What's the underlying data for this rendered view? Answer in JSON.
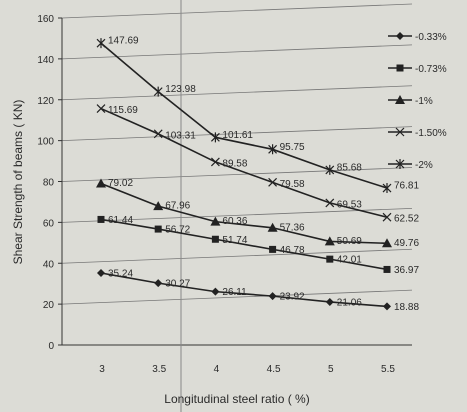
{
  "chart_data": {
    "type": "line",
    "x": [
      3,
      3.5,
      4,
      4.5,
      5,
      5.5
    ],
    "x_tick_labels": [
      "3",
      "3.5",
      "4",
      "4.5",
      "5",
      "5.5"
    ],
    "xlabel": "Longitudinal steel ratio  ( %)",
    "ylabel": "Shear Strength of beams  ( KN)",
    "ylim": [
      0,
      160
    ],
    "y_ticks": [
      "0",
      "20",
      "40",
      "60",
      "80",
      "100",
      "120",
      "140",
      "160"
    ],
    "grid": "horizontal",
    "legend_position": "right",
    "series": [
      {
        "name": "0.33%",
        "marker": "diamond",
        "color": "#222222",
        "values": [
          35.24,
          30.27,
          26.11,
          23.92,
          21.06,
          18.88
        ],
        "labels": [
          "35.24",
          "30.27",
          "26.11",
          "23.92",
          "21.06",
          "18.88"
        ]
      },
      {
        "name": "0.73%",
        "marker": "square",
        "color": "#222222",
        "values": [
          61.44,
          56.72,
          51.74,
          46.78,
          42.01,
          36.97
        ],
        "labels": [
          "61.44",
          "56.72",
          "51.74",
          "46.78",
          "42.01",
          "36.97"
        ]
      },
      {
        "name": "1%",
        "marker": "triangle",
        "color": "#222222",
        "values": [
          79.02,
          67.96,
          60.36,
          57.36,
          50.69,
          49.76
        ],
        "labels": [
          "79.02",
          "67.96",
          "60.36",
          "57.36",
          "50.69",
          "49.76"
        ]
      },
      {
        "name": "1.50%",
        "marker": "x",
        "color": "#222222",
        "values": [
          115.69,
          103.31,
          89.58,
          79.58,
          69.53,
          62.52
        ],
        "labels": [
          "115.69",
          "103.31",
          "89.58",
          "79.58",
          "69.53",
          "62.52"
        ]
      },
      {
        "name": "2%",
        "marker": "star",
        "color": "#222222",
        "values": [
          147.69,
          123.98,
          101.61,
          95.75,
          85.68,
          76.81
        ],
        "labels": [
          "147.69",
          "123.98",
          "101.61",
          "95.75",
          "85.68",
          "76.81"
        ]
      }
    ]
  }
}
